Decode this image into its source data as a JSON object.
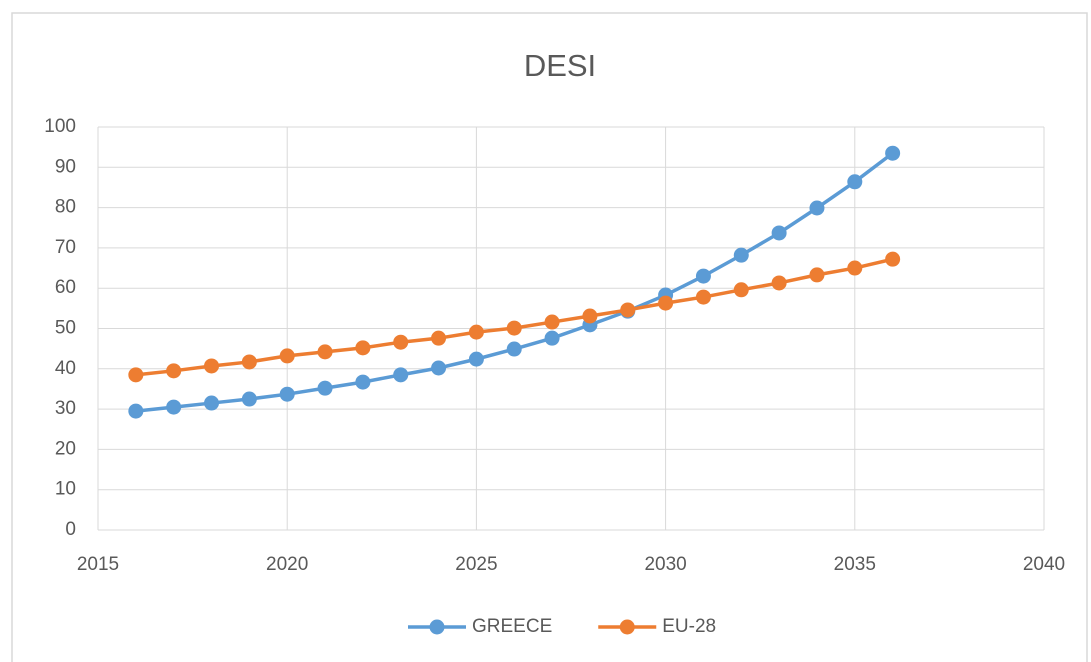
{
  "chart_data": {
    "type": "line",
    "title": "DESI",
    "x": [
      2016,
      2017,
      2018,
      2019,
      2020,
      2021,
      2022,
      2023,
      2024,
      2025,
      2026,
      2027,
      2028,
      2029,
      2030,
      2031,
      2032,
      2033,
      2034,
      2035,
      2036
    ],
    "series": [
      {
        "name": "GREECE",
        "color": "#5b9bd5",
        "values": [
          29.5,
          30.5,
          31.5,
          32.5,
          33.7,
          35.2,
          36.7,
          38.5,
          40.2,
          42.4,
          44.9,
          47.6,
          50.9,
          54.3,
          58.3,
          63,
          68.2,
          73.7,
          79.9,
          86.4,
          93.5
        ]
      },
      {
        "name": "EU-28",
        "color": "#ed7d31",
        "values": [
          38.5,
          39.5,
          40.7,
          41.7,
          43.2,
          44.2,
          45.2,
          46.6,
          47.6,
          49.1,
          50.1,
          51.6,
          53.1,
          54.6,
          56.3,
          57.8,
          59.6,
          61.3,
          63.3,
          65,
          67.2
        ]
      }
    ],
    "xlim": [
      2015,
      2040
    ],
    "xticks": [
      2015,
      2020,
      2025,
      2030,
      2035,
      2040
    ],
    "ylim": [
      0,
      100
    ],
    "yticks": [
      0,
      10,
      20,
      30,
      40,
      50,
      60,
      70,
      80,
      90,
      100
    ],
    "grid": true,
    "legend": "bottom"
  }
}
